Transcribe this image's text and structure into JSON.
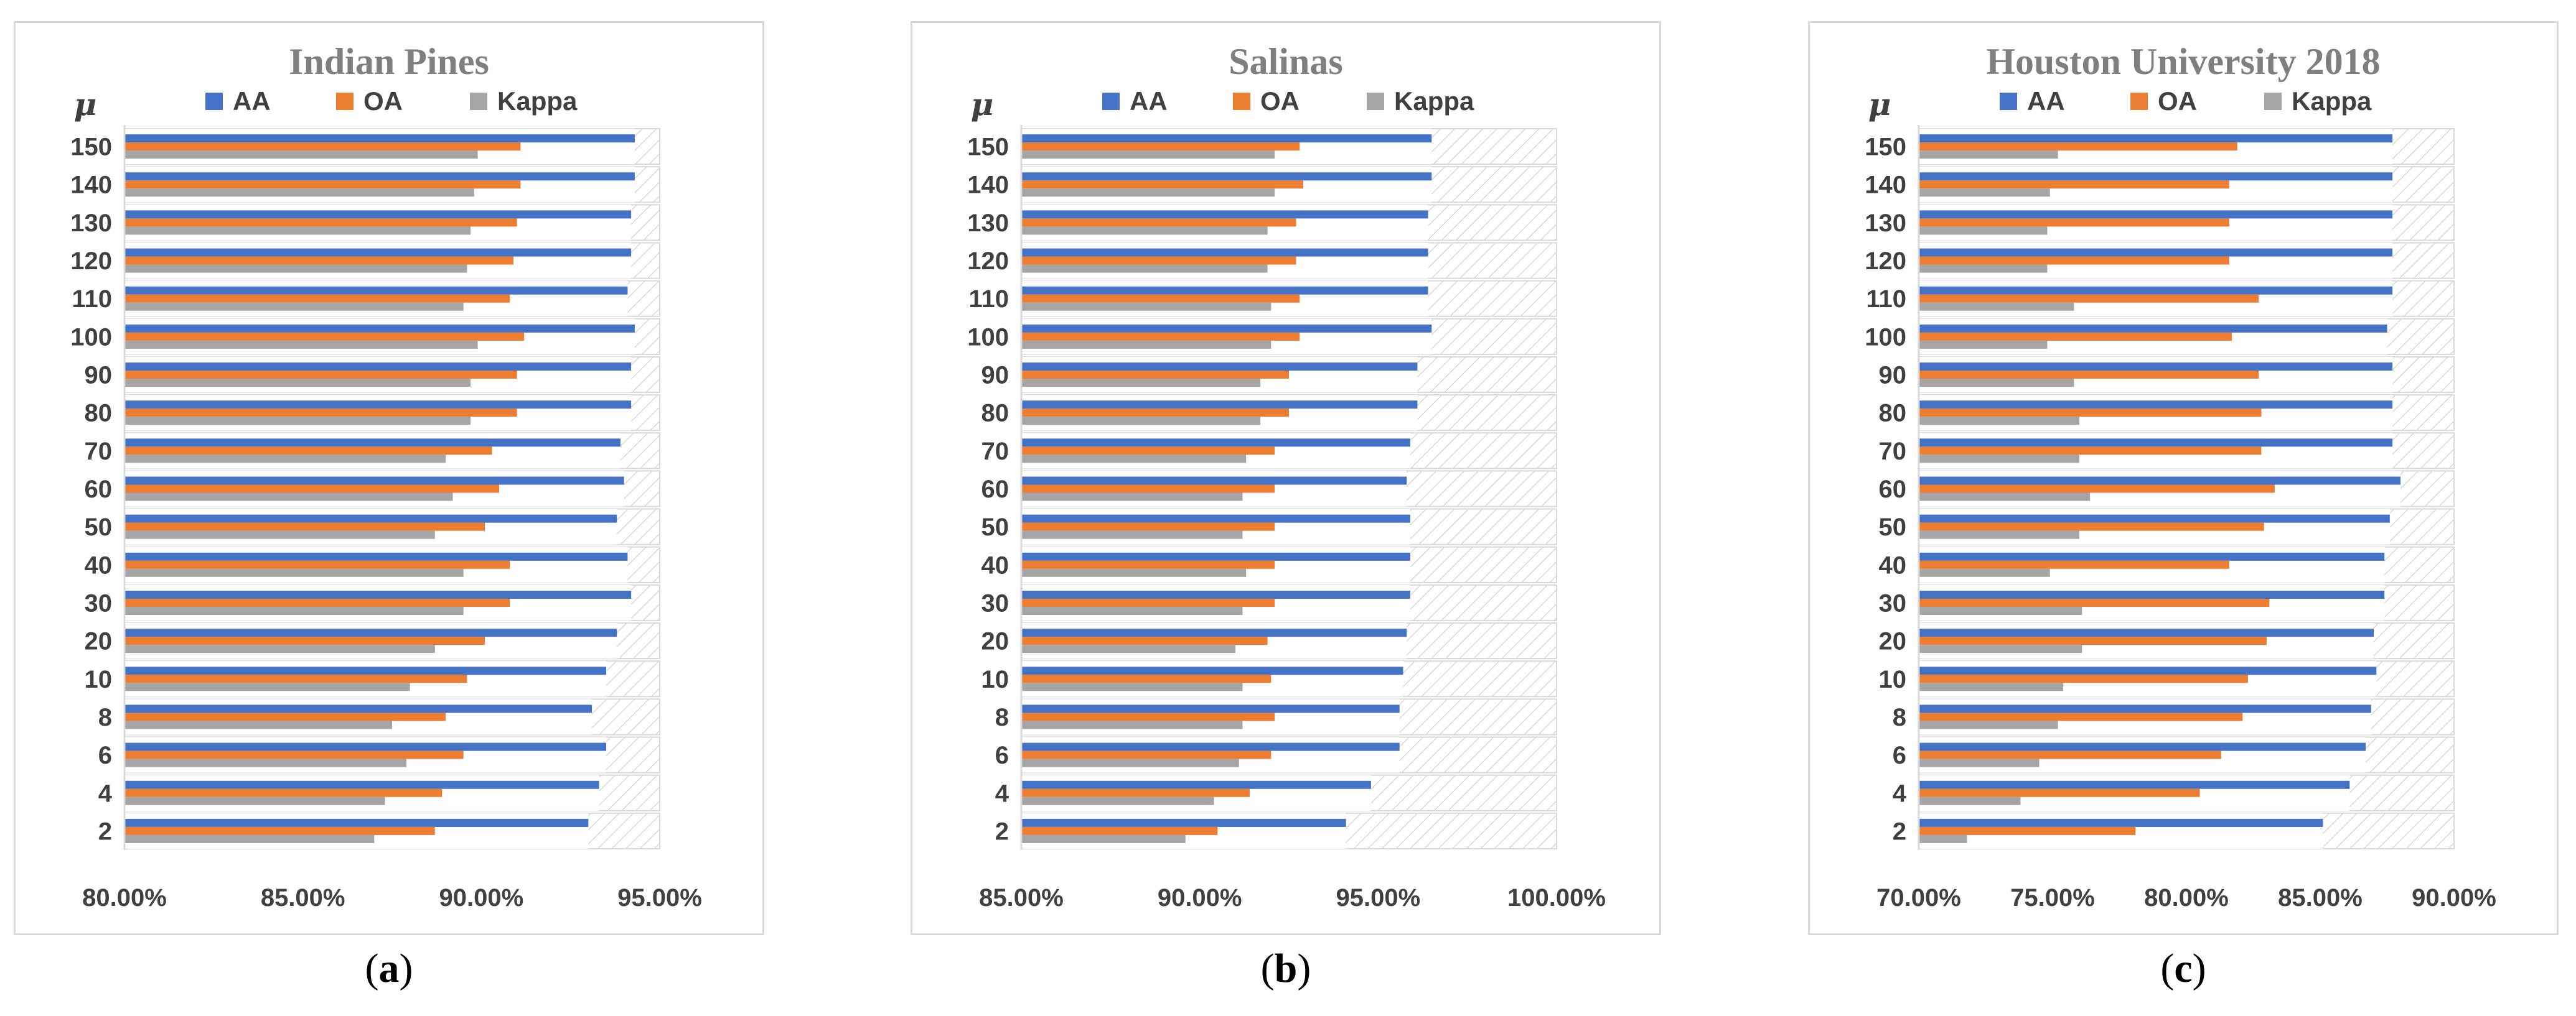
{
  "colors": {
    "AA": "#4472c4",
    "OA": "#ed7d31",
    "Kappa": "#a5a5a5",
    "axis": "#d9d9d9",
    "hatch": "#c8c8c8"
  },
  "captions": [
    "(a)",
    "(b)",
    "(c)"
  ],
  "chart_data": [
    {
      "type": "bar",
      "orientation": "horizontal",
      "title": "Indian Pines",
      "ylabel": "μ",
      "categories": [
        "2",
        "4",
        "6",
        "8",
        "10",
        "20",
        "30",
        "40",
        "50",
        "60",
        "70",
        "80",
        "90",
        "100",
        "110",
        "120",
        "130",
        "140",
        "150"
      ],
      "xlim": [
        80,
        95
      ],
      "xticks": [
        80,
        85,
        90,
        95
      ],
      "xtick_labels": [
        "80.00%",
        "85.00%",
        "90.00%",
        "95.00%"
      ],
      "legend": "top",
      "grid": false,
      "series": [
        {
          "name": "AA",
          "values": [
            93.0,
            93.3,
            93.5,
            93.1,
            93.5,
            93.8,
            94.2,
            94.1,
            93.8,
            94.0,
            93.9,
            94.2,
            94.2,
            94.3,
            94.1,
            94.2,
            94.2,
            94.3,
            94.3
          ]
        },
        {
          "name": "OA",
          "values": [
            88.7,
            88.9,
            89.5,
            89.0,
            89.6,
            90.1,
            90.8,
            90.8,
            90.1,
            90.5,
            90.3,
            91.0,
            91.0,
            91.2,
            90.8,
            90.9,
            91.0,
            91.1,
            91.1
          ]
        },
        {
          "name": "Kappa",
          "values": [
            87.0,
            87.3,
            87.9,
            87.5,
            88.0,
            88.7,
            89.5,
            89.5,
            88.7,
            89.2,
            89.0,
            89.7,
            89.7,
            89.9,
            89.5,
            89.6,
            89.7,
            89.8,
            89.9
          ]
        }
      ]
    },
    {
      "type": "bar",
      "orientation": "horizontal",
      "title": "Salinas",
      "ylabel": "μ",
      "categories": [
        "2",
        "4",
        "6",
        "8",
        "10",
        "20",
        "30",
        "40",
        "50",
        "60",
        "70",
        "80",
        "90",
        "100",
        "110",
        "120",
        "130",
        "140",
        "150"
      ],
      "xlim": [
        85,
        100
      ],
      "xticks": [
        85,
        90,
        95,
        100
      ],
      "xtick_labels": [
        "85.00%",
        "90.00%",
        "95.00%",
        "100.00%"
      ],
      "legend": "top",
      "grid": false,
      "series": [
        {
          "name": "AA",
          "values": [
            94.1,
            94.8,
            95.6,
            95.6,
            95.7,
            95.8,
            95.9,
            95.9,
            95.9,
            95.8,
            95.9,
            96.1,
            96.1,
            96.5,
            96.4,
            96.4,
            96.4,
            96.5,
            96.5
          ]
        },
        {
          "name": "OA",
          "values": [
            90.5,
            91.4,
            92.0,
            92.1,
            92.0,
            91.9,
            92.1,
            92.1,
            92.1,
            92.1,
            92.1,
            92.5,
            92.5,
            92.8,
            92.8,
            92.7,
            92.7,
            92.9,
            92.8
          ]
        },
        {
          "name": "Kappa",
          "values": [
            89.6,
            90.4,
            91.1,
            91.2,
            91.2,
            91.0,
            91.2,
            91.3,
            91.2,
            91.2,
            91.3,
            91.7,
            91.7,
            92.0,
            92.0,
            91.9,
            91.9,
            92.1,
            92.1
          ]
        }
      ]
    },
    {
      "type": "bar",
      "orientation": "horizontal",
      "title": "Houston University 2018",
      "ylabel": "μ",
      "categories": [
        "2",
        "4",
        "6",
        "8",
        "10",
        "20",
        "30",
        "40",
        "50",
        "60",
        "70",
        "80",
        "90",
        "100",
        "110",
        "120",
        "130",
        "140",
        "150"
      ],
      "xlim": [
        70,
        90
      ],
      "xticks": [
        70,
        75,
        80,
        85,
        90
      ],
      "xtick_labels": [
        "70.00%",
        "75.00%",
        "80.00%",
        "85.00%",
        "90.00%"
      ],
      "legend": "top",
      "grid": false,
      "series": [
        {
          "name": "AA",
          "values": [
            85.1,
            86.1,
            86.7,
            86.9,
            87.1,
            87.0,
            87.4,
            87.4,
            87.6,
            88.0,
            87.7,
            87.7,
            87.7,
            87.5,
            87.7,
            87.7,
            87.7,
            87.7,
            87.7
          ]
        },
        {
          "name": "OA",
          "values": [
            78.1,
            80.5,
            81.3,
            82.1,
            82.3,
            83.0,
            83.1,
            81.6,
            82.9,
            83.3,
            82.8,
            82.8,
            82.7,
            81.7,
            82.7,
            81.6,
            81.6,
            81.6,
            81.9
          ]
        },
        {
          "name": "Kappa",
          "values": [
            71.8,
            73.8,
            74.5,
            75.2,
            75.4,
            76.1,
            76.1,
            74.9,
            76.0,
            76.4,
            76.0,
            76.0,
            75.8,
            74.8,
            75.8,
            74.8,
            74.8,
            74.9,
            75.2
          ]
        }
      ]
    }
  ]
}
